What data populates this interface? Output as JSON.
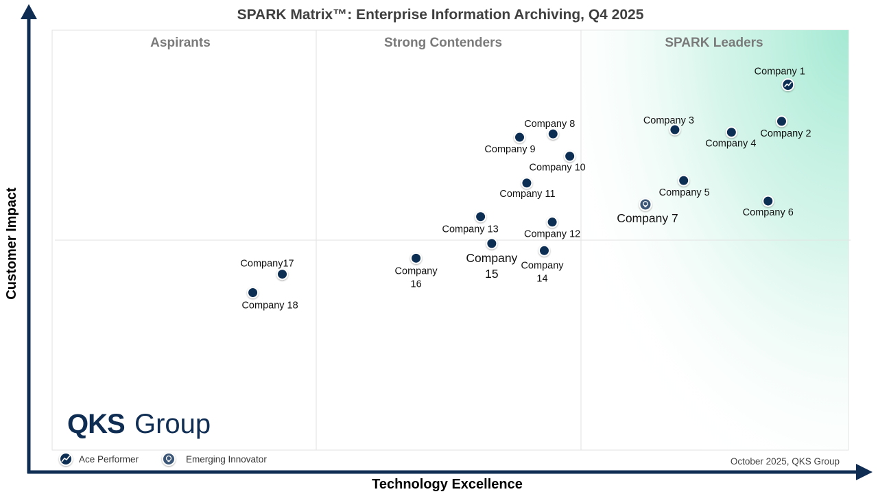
{
  "chart_data": {
    "type": "scatter",
    "title": "SPARK Matrix™: Enterprise Information Archiving, Q4 2025",
    "xlabel": "Technology Excellence",
    "ylabel": "Customer Impact",
    "xlim": [
      0,
      100
    ],
    "ylim": [
      0,
      100
    ],
    "regions": [
      "Aspirants",
      "Strong Contenders",
      "SPARK Leaders"
    ],
    "points": [
      {
        "name": "Company 1",
        "x": 92.4,
        "y": 87.0,
        "marker": "ace-performer"
      },
      {
        "name": "Company 2",
        "x": 91.6,
        "y": 78.3,
        "marker": "standard"
      },
      {
        "name": "Company 3",
        "x": 78.2,
        "y": 76.3,
        "marker": "standard"
      },
      {
        "name": "Company 4",
        "x": 85.3,
        "y": 75.7,
        "marker": "standard"
      },
      {
        "name": "Company 5",
        "x": 79.3,
        "y": 64.2,
        "marker": "standard"
      },
      {
        "name": "Company 6",
        "x": 89.9,
        "y": 59.3,
        "marker": "standard"
      },
      {
        "name": "Company 7",
        "x": 74.5,
        "y": 58.5,
        "marker": "emerging-innovator"
      },
      {
        "name": "Company 8",
        "x": 62.9,
        "y": 75.3,
        "marker": "standard"
      },
      {
        "name": "Company 9",
        "x": 58.7,
        "y": 74.5,
        "marker": "standard"
      },
      {
        "name": "Company 10",
        "x": 65.0,
        "y": 70.0,
        "marker": "standard"
      },
      {
        "name": "Company 11",
        "x": 59.6,
        "y": 63.6,
        "marker": "standard"
      },
      {
        "name": "Company 12",
        "x": 62.8,
        "y": 54.3,
        "marker": "standard"
      },
      {
        "name": "Company 13",
        "x": 53.8,
        "y": 55.6,
        "marker": "standard"
      },
      {
        "name": "Company 14",
        "x": 61.8,
        "y": 47.5,
        "marker": "standard"
      },
      {
        "name": "Company 15",
        "x": 55.2,
        "y": 49.2,
        "marker": "standard"
      },
      {
        "name": "Company 16",
        "x": 45.7,
        "y": 45.7,
        "marker": "standard"
      },
      {
        "name": "Company17",
        "x": 28.9,
        "y": 41.9,
        "marker": "standard"
      },
      {
        "name": "Company 18",
        "x": 25.2,
        "y": 37.5,
        "marker": "standard"
      }
    ],
    "legend": [
      {
        "key": "ace-performer",
        "label": "Ace Performer"
      },
      {
        "key": "emerging-innovator",
        "label": "Emerging Innovator"
      }
    ]
  },
  "footer": {
    "text": "October 2025, QKS Group"
  },
  "logo": {
    "brand": "QKS",
    "word": "Group"
  },
  "colors": {
    "marker": "#0f2d52",
    "axis": "#0f2d52",
    "leader_gradient": "#a4e9d3",
    "grid": "#e2e2e2"
  }
}
